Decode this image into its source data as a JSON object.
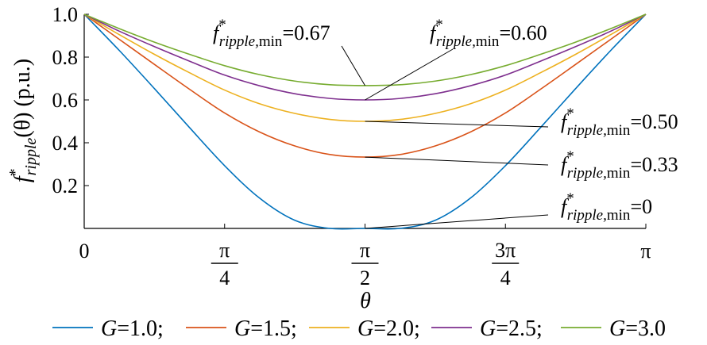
{
  "chart_data": {
    "type": "line",
    "xlabel": "θ",
    "ylabel": {
      "base": "f",
      "sup": "*",
      "sub": "ripple",
      "arg": "(θ) (p.u.)"
    },
    "xlim": [
      0,
      3.14159
    ],
    "ylim": [
      0,
      1.0
    ],
    "x_ticks": [
      {
        "value": 0,
        "label": "0",
        "fraction": false
      },
      {
        "value": 0.7854,
        "num": "π",
        "den": "4",
        "fraction": true
      },
      {
        "value": 1.5708,
        "num": "π",
        "den": "2",
        "fraction": true
      },
      {
        "value": 2.3562,
        "num": "3π",
        "den": "4",
        "fraction": true
      },
      {
        "value": 3.14159,
        "label": "π",
        "fraction": false
      }
    ],
    "y_ticks": [
      {
        "value": 0.2,
        "label": "0.2"
      },
      {
        "value": 0.4,
        "label": "0.4"
      },
      {
        "value": 0.6,
        "label": "0.6"
      },
      {
        "value": 0.8,
        "label": "0.8"
      },
      {
        "value": 1.0,
        "label": "1.0"
      }
    ],
    "x": [
      0,
      0.1963,
      0.3927,
      0.589,
      0.7854,
      0.9817,
      1.1781,
      1.3744,
      1.5708,
      1.7671,
      1.9635,
      2.1598,
      2.3562,
      2.5525,
      2.7489,
      2.9452,
      3.1416
    ],
    "series": [
      {
        "name": "G=1.0",
        "label_var": "G",
        "label_val": "=1.0;",
        "color": "#0072BD",
        "values": [
          1.0,
          0.831,
          0.653,
          0.471,
          0.293,
          0.141,
          0.038,
          0.0,
          0.0,
          0.0,
          0.038,
          0.141,
          0.293,
          0.471,
          0.653,
          0.831,
          1.0
        ]
      },
      {
        "name": "G=1.5",
        "label_var": "G",
        "label_val": "=1.5;",
        "color": "#D95319",
        "values": [
          1.0,
          0.883,
          0.766,
          0.65,
          0.539,
          0.45,
          0.385,
          0.345,
          0.333,
          0.345,
          0.385,
          0.45,
          0.539,
          0.65,
          0.766,
          0.883,
          1.0
        ]
      },
      {
        "name": "G=2.0",
        "label_var": "G",
        "label_val": "=2.0;",
        "color": "#EDB120",
        "values": [
          1.0,
          0.905,
          0.813,
          0.727,
          0.646,
          0.582,
          0.537,
          0.509,
          0.5,
          0.509,
          0.537,
          0.582,
          0.646,
          0.727,
          0.813,
          0.905,
          1.0
        ]
      },
      {
        "name": "G=2.5",
        "label_var": "G",
        "label_val": "=2.5;",
        "color": "#7E2F8E",
        "values": [
          1.0,
          0.921,
          0.849,
          0.781,
          0.716,
          0.666,
          0.629,
          0.607,
          0.6,
          0.607,
          0.629,
          0.666,
          0.716,
          0.781,
          0.849,
          0.921,
          1.0
        ]
      },
      {
        "name": "G=3.0",
        "label_var": "G",
        "label_val": "=3.0",
        "color": "#77AC30",
        "values": [
          1.0,
          0.933,
          0.87,
          0.813,
          0.76,
          0.718,
          0.688,
          0.671,
          0.667,
          0.671,
          0.688,
          0.718,
          0.76,
          0.813,
          0.87,
          0.933,
          1.0
        ]
      }
    ],
    "annotations": [
      {
        "base": "f",
        "sup": "*",
        "sub": "ripple,",
        "sub2": "min",
        "value": "=0.67",
        "point": [
          1.5708,
          0.667
        ]
      },
      {
        "base": "f",
        "sup": "*",
        "sub": "ripple,",
        "sub2": "min",
        "value": "=0.60",
        "point": [
          1.5708,
          0.6
        ]
      },
      {
        "base": "f",
        "sup": "*",
        "sub": "ripple,",
        "sub2": "min",
        "value": "=0.50",
        "point": [
          1.5708,
          0.5
        ]
      },
      {
        "base": "f",
        "sup": "*",
        "sub": "ripple,",
        "sub2": "min",
        "value": "=0.33",
        "point": [
          1.5708,
          0.333
        ]
      },
      {
        "base": "f",
        "sup": "*",
        "sub": "ripple,",
        "sub2": "min",
        "value": "=0",
        "point": [
          1.5708,
          0.0
        ]
      }
    ],
    "grid": false,
    "legend_position": "bottom"
  }
}
